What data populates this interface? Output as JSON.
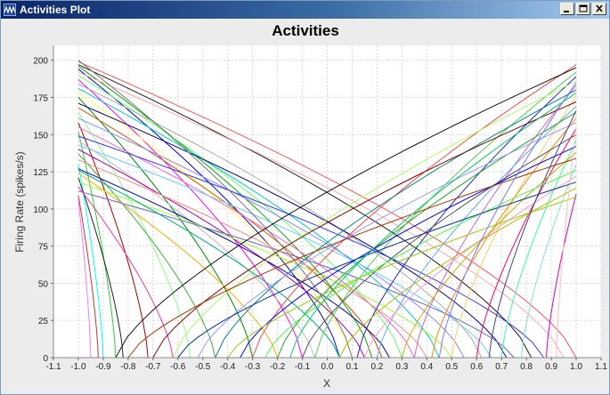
{
  "window": {
    "title": "Activities Plot",
    "icon": "app-wave-icon",
    "buttons": [
      "minimize-icon",
      "maximize-icon",
      "close-icon"
    ]
  },
  "chart_data": {
    "type": "line",
    "title": "Activities",
    "xlabel": "X",
    "ylabel": "Firing Rate (spikes/s)",
    "xlim": [
      -1.1,
      1.1
    ],
    "ylim": [
      0,
      210
    ],
    "xticks": [
      "-1.1",
      "-1.0",
      "-0.9",
      "-0.8",
      "-0.7",
      "-0.6",
      "-0.5",
      "-0.4",
      "-0.3",
      "-0.2",
      "-0.1",
      "0.0",
      "0.1",
      "0.2",
      "0.3",
      "0.4",
      "0.5",
      "0.6",
      "0.7",
      "0.8",
      "0.9",
      "1.0",
      "1.1"
    ],
    "yticks": [
      "0",
      "25",
      "50",
      "75",
      "100",
      "125",
      "150",
      "175",
      "200"
    ],
    "grid": true,
    "legend": "none",
    "plot_background": "#ffffff",
    "page_background": "#ececec",
    "series": [
      {
        "color": "#ff5555",
        "values": [
          [
            -1.0,
            199
          ],
          [
            1.0,
            0
          ]
        ]
      },
      {
        "color": "#1a1a1a",
        "values": [
          [
            -1.0,
            197
          ],
          [
            0.82,
            0
          ]
        ]
      },
      {
        "color": "#00aa00",
        "values": [
          [
            -1.0,
            196
          ],
          [
            0.18,
            0
          ]
        ]
      },
      {
        "color": "#0000cc",
        "values": [
          [
            -1.0,
            194
          ],
          [
            0.05,
            0
          ]
        ]
      },
      {
        "color": "#ffaaaa",
        "values": [
          [
            -1.0,
            192
          ],
          [
            0.95,
            0
          ]
        ]
      },
      {
        "color": "#66ff66",
        "values": [
          [
            -1.0,
            190
          ],
          [
            0.3,
            0
          ]
        ]
      },
      {
        "color": "#ff00ff",
        "values": [
          [
            -1.0,
            187
          ],
          [
            -0.1,
            0
          ]
        ]
      },
      {
        "color": "#aaaaaa",
        "values": [
          [
            -1.0,
            184
          ],
          [
            0.62,
            0
          ]
        ]
      },
      {
        "color": "#00cccc",
        "values": [
          [
            -1.0,
            181
          ],
          [
            0.45,
            0
          ]
        ]
      },
      {
        "color": "#ffff55",
        "values": [
          [
            -1.0,
            178
          ],
          [
            0.1,
            0
          ]
        ]
      },
      {
        "color": "#008800",
        "values": [
          [
            -1.0,
            175
          ],
          [
            -0.3,
            0
          ]
        ]
      },
      {
        "color": "#000088",
        "values": [
          [
            -1.0,
            171
          ],
          [
            0.72,
            0
          ]
        ]
      },
      {
        "color": "#cc5500",
        "values": [
          [
            -1.0,
            168
          ],
          [
            0.22,
            0
          ]
        ]
      },
      {
        "color": "#88ff88",
        "values": [
          [
            -1.0,
            165
          ],
          [
            -0.55,
            0
          ]
        ]
      },
      {
        "color": "#8888ff",
        "values": [
          [
            -1.0,
            161
          ],
          [
            0.55,
            0
          ]
        ]
      },
      {
        "color": "#aa0000",
        "values": [
          [
            -1.0,
            158
          ],
          [
            -0.72,
            0
          ]
        ]
      },
      {
        "color": "#ff66cc",
        "values": [
          [
            -1.0,
            155
          ],
          [
            0.35,
            0
          ]
        ]
      },
      {
        "color": "#33cc33",
        "values": [
          [
            -1.0,
            152
          ],
          [
            -0.85,
            0
          ]
        ]
      },
      {
        "color": "#3333ff",
        "values": [
          [
            -1.0,
            149
          ],
          [
            0.87,
            0
          ]
        ]
      },
      {
        "color": "#bbbbbb",
        "values": [
          [
            -1.0,
            146
          ],
          [
            -0.05,
            0
          ]
        ]
      },
      {
        "color": "#66ccff",
        "values": [
          [
            -1.0,
            143
          ],
          [
            0.66,
            0
          ]
        ]
      },
      {
        "color": "#aa00aa",
        "values": [
          [
            -1.0,
            140
          ],
          [
            0.15,
            0
          ]
        ]
      },
      {
        "color": "#44aa44",
        "values": [
          [
            -1.0,
            137
          ],
          [
            -0.45,
            0
          ]
        ]
      },
      {
        "color": "#ff8888",
        "values": [
          [
            -1.0,
            133
          ],
          [
            0.4,
            0
          ]
        ]
      },
      {
        "color": "#00ffff",
        "values": [
          [
            -1.0,
            130
          ],
          [
            -0.9,
            0
          ]
        ]
      },
      {
        "color": "#0000aa",
        "values": [
          [
            -1.0,
            127
          ],
          [
            0.25,
            0
          ]
        ]
      },
      {
        "color": "#ffaa00",
        "values": [
          [
            -1.0,
            124
          ],
          [
            -0.2,
            0
          ]
        ]
      },
      {
        "color": "#222222",
        "values": [
          [
            -1.0,
            121
          ],
          [
            -0.82,
            0
          ]
        ]
      },
      {
        "color": "#99ff33",
        "values": [
          [
            -1.0,
            118
          ],
          [
            0.5,
            0
          ]
        ]
      },
      {
        "color": "#ff3399",
        "values": [
          [
            -1.0,
            115
          ],
          [
            -0.62,
            0
          ]
        ]
      },
      {
        "color": "#6666cc",
        "values": [
          [
            -1.0,
            112
          ],
          [
            0.75,
            0
          ]
        ]
      },
      {
        "color": "#cc3333",
        "values": [
          [
            -1.0,
            109
          ],
          [
            -0.92,
            0
          ]
        ]
      },
      {
        "color": "#00aa88",
        "values": [
          [
            -1.0,
            126
          ],
          [
            0.05,
            0
          ]
        ]
      },
      {
        "color": "#ff77ff",
        "values": [
          [
            -1.0,
            106
          ],
          [
            -0.95,
            0
          ]
        ]
      },
      {
        "color": "#777777",
        "values": [
          [
            -1.0,
            200
          ],
          [
            0.1,
            0
          ]
        ]
      },
      {
        "color": "#ff4444",
        "values": [
          [
            -0.3,
            0
          ],
          [
            1.0,
            197
          ]
        ]
      },
      {
        "color": "#111111",
        "values": [
          [
            -0.85,
            0
          ],
          [
            1.0,
            195
          ]
        ]
      },
      {
        "color": "#55cc55",
        "values": [
          [
            -0.05,
            0
          ],
          [
            1.0,
            192
          ]
        ]
      },
      {
        "color": "#2222cc",
        "values": [
          [
            0.12,
            0
          ],
          [
            1.0,
            189
          ]
        ]
      },
      {
        "color": "#aaff66",
        "values": [
          [
            -0.62,
            0
          ],
          [
            1.0,
            186
          ]
        ]
      },
      {
        "color": "#cc66cc",
        "values": [
          [
            0.35,
            0
          ],
          [
            1.0,
            183
          ]
        ]
      },
      {
        "color": "#008888",
        "values": [
          [
            -0.45,
            0
          ],
          [
            1.0,
            180
          ]
        ]
      },
      {
        "color": "#ffcc66",
        "values": [
          [
            0.5,
            0
          ],
          [
            1.0,
            176
          ]
        ]
      },
      {
        "color": "#880000",
        "values": [
          [
            -0.7,
            0
          ],
          [
            1.0,
            172
          ]
        ]
      },
      {
        "color": "#66aaff",
        "values": [
          [
            0.2,
            0
          ],
          [
            1.0,
            169
          ]
        ]
      },
      {
        "color": "#22aa22",
        "values": [
          [
            -0.2,
            0
          ],
          [
            1.0,
            165
          ]
        ]
      },
      {
        "color": "#ff8800",
        "values": [
          [
            0.42,
            0
          ],
          [
            1.0,
            161
          ]
        ]
      },
      {
        "color": "#9999ff",
        "values": [
          [
            -0.52,
            0
          ],
          [
            1.0,
            158
          ]
        ]
      },
      {
        "color": "#ff0066",
        "values": [
          [
            0.6,
            0
          ],
          [
            1.0,
            154
          ]
        ]
      },
      {
        "color": "#555555",
        "values": [
          [
            -0.1,
            0
          ],
          [
            1.0,
            150
          ]
        ]
      },
      {
        "color": "#33ff99",
        "values": [
          [
            0.7,
            0
          ],
          [
            1.0,
            146
          ]
        ]
      },
      {
        "color": "#0000ff",
        "values": [
          [
            -0.35,
            0
          ],
          [
            1.0,
            142
          ]
        ]
      },
      {
        "color": "#ccaa00",
        "values": [
          [
            0.3,
            0
          ],
          [
            1.0,
            138
          ]
        ]
      },
      {
        "color": "#aa3300",
        "values": [
          [
            -0.8,
            0
          ],
          [
            1.0,
            134
          ]
        ]
      },
      {
        "color": "#88dddd",
        "values": [
          [
            0.78,
            0
          ],
          [
            1.0,
            130
          ]
        ]
      },
      {
        "color": "#44ff44",
        "values": [
          [
            -0.25,
            0
          ],
          [
            1.0,
            126
          ]
        ]
      },
      {
        "color": "#ff99cc",
        "values": [
          [
            0.15,
            0
          ],
          [
            1.0,
            122
          ]
        ]
      },
      {
        "color": "#003399",
        "values": [
          [
            -0.6,
            0
          ],
          [
            1.0,
            118
          ]
        ]
      },
      {
        "color": "#bbbb00",
        "values": [
          [
            0.05,
            0
          ],
          [
            1.0,
            114
          ]
        ]
      },
      {
        "color": "#cc00cc",
        "values": [
          [
            0.88,
            0
          ],
          [
            1.0,
            110
          ]
        ]
      },
      {
        "color": "#99cc00",
        "values": [
          [
            -0.4,
            0
          ],
          [
            1.0,
            108
          ]
        ]
      },
      {
        "color": "#7777ff",
        "values": [
          [
            0.45,
            0
          ],
          [
            1.0,
            185
          ]
        ]
      },
      {
        "color": "#00cc66",
        "values": [
          [
            -0.15,
            0
          ],
          [
            1.0,
            178
          ]
        ]
      },
      {
        "color": "#444488",
        "values": [
          [
            0.65,
            0
          ],
          [
            1.0,
            166
          ]
        ]
      },
      {
        "color": "#ffbbbb",
        "values": [
          [
            0.92,
            0
          ],
          [
            1.0,
            155
          ]
        ]
      }
    ]
  }
}
